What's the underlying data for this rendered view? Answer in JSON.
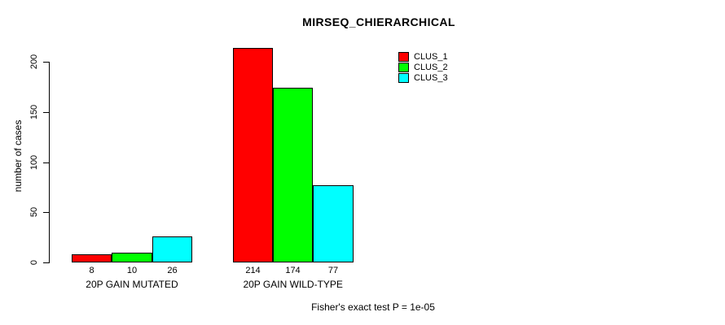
{
  "chart_data": {
    "type": "bar",
    "title": "MIRSEQ_CHIERARCHICAL",
    "ylabel": "number of cases",
    "xlabel": "",
    "categories": [
      "20P GAIN MUTATED",
      "20P GAIN WILD-TYPE"
    ],
    "series": [
      {
        "name": "CLUS_1",
        "color": "#ff0000",
        "values": [
          8,
          214
        ]
      },
      {
        "name": "CLUS_2",
        "color": "#00ff00",
        "values": [
          10,
          174
        ]
      },
      {
        "name": "CLUS_3",
        "color": "#00ffff",
        "values": [
          26,
          77
        ]
      }
    ],
    "bar_value_labels": [
      [
        8,
        10,
        26
      ],
      [
        214,
        174,
        77
      ]
    ],
    "yticks": [
      0,
      50,
      100,
      150,
      200
    ],
    "ylim": [
      0,
      215
    ],
    "grid": false,
    "legend_position": "top-right",
    "legend_entries": [
      "CLUS_1",
      "CLUS_2",
      "CLUS_3"
    ],
    "bar_border_color": "#000000",
    "background_color": "#ffffff",
    "annotation": "Fisher's exact test P = 1e-05"
  }
}
